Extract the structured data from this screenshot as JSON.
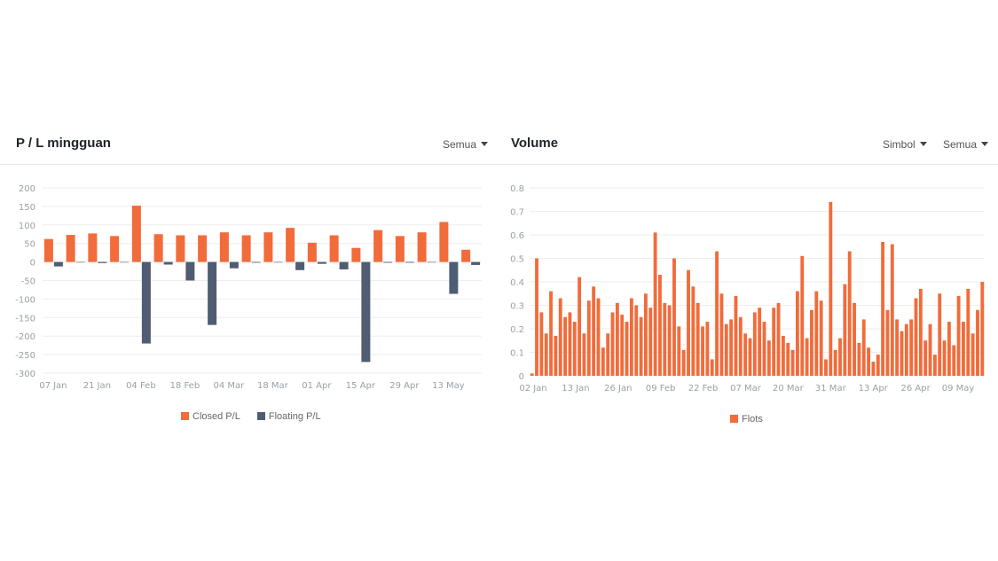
{
  "colors": {
    "closed": "#f26b3a",
    "floating": "#4f5d73",
    "volume": "#f26b3a",
    "grid": "#eceef1"
  },
  "pl_panel": {
    "title": "P / L mingguan",
    "filter": "Semua",
    "filter_icon": "caret-down-icon"
  },
  "volume_panel": {
    "title": "Volume",
    "symbol_filter": "Simbol",
    "filter": "Semua",
    "filter_icon": "caret-down-icon"
  },
  "chart_data": [
    {
      "type": "bar",
      "x_tick_labels": [
        "07 Jan",
        "21 Jan",
        "04 Feb",
        "18 Feb",
        "04 Mar",
        "18 Mar",
        "01 Apr",
        "15 Apr",
        "29 Apr",
        "13 May"
      ],
      "ylim": [
        -300,
        200
      ],
      "yticks": [
        200,
        150,
        100,
        50,
        0,
        -50,
        -100,
        -150,
        -200,
        -250,
        -300
      ],
      "grid": true,
      "legend_position": "bottom",
      "series": [
        {
          "name": "Closed P/L",
          "values": [
            62,
            73,
            77,
            70,
            152,
            75,
            72,
            72,
            80,
            72,
            80,
            92,
            52,
            72,
            38,
            86,
            70,
            80,
            108,
            33
          ]
        },
        {
          "name": "Floating P/L",
          "values": [
            -12,
            0,
            -3,
            0,
            -220,
            -7,
            -50,
            -170,
            -17,
            -2,
            0,
            -22,
            -5,
            -20,
            -270,
            -2,
            -2,
            0,
            -86,
            -8
          ]
        }
      ]
    },
    {
      "type": "bar",
      "x_tick_labels": [
        "02 Jan",
        "13 Jan",
        "26 Jan",
        "09 Feb",
        "22 Feb",
        "07 Mar",
        "20 Mar",
        "31 Mar",
        "13 Apr",
        "26 Apr",
        "09 May"
      ],
      "ylim": [
        0,
        0.8
      ],
      "yticks": [
        "0.8",
        "0.7",
        "0.6",
        "0.5",
        "0.4",
        "0.3",
        "0.2",
        "0.1",
        "0"
      ],
      "grid": true,
      "legend_position": "bottom",
      "series": [
        {
          "name": "Flots",
          "values": [
            0.01,
            0.5,
            0.27,
            0.18,
            0.36,
            0.17,
            0.33,
            0.25,
            0.27,
            0.23,
            0.42,
            0.18,
            0.32,
            0.38,
            0.33,
            0.12,
            0.18,
            0.27,
            0.31,
            0.26,
            0.23,
            0.33,
            0.3,
            0.25,
            0.35,
            0.29,
            0.61,
            0.43,
            0.31,
            0.3,
            0.5,
            0.21,
            0.11,
            0.45,
            0.38,
            0.31,
            0.21,
            0.23,
            0.07,
            0.53,
            0.35,
            0.22,
            0.24,
            0.34,
            0.25,
            0.18,
            0.16,
            0.27,
            0.29,
            0.23,
            0.15,
            0.29,
            0.31,
            0.17,
            0.14,
            0.11,
            0.36,
            0.51,
            0.16,
            0.28,
            0.36,
            0.32,
            0.07,
            0.74,
            0.11,
            0.16,
            0.39,
            0.53,
            0.31,
            0.14,
            0.24,
            0.12,
            0.06,
            0.09,
            0.57,
            0.28,
            0.56,
            0.24,
            0.19,
            0.22,
            0.24,
            0.33,
            0.37,
            0.15,
            0.22,
            0.09,
            0.35,
            0.15,
            0.23,
            0.13,
            0.34,
            0.23,
            0.37,
            0.18,
            0.28,
            0.4
          ]
        }
      ]
    }
  ]
}
